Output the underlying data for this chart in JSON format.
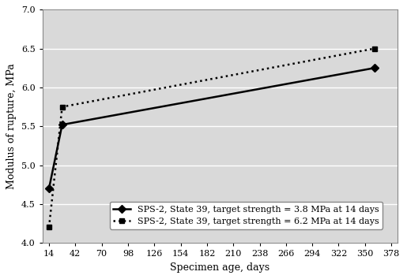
{
  "series1": {
    "x": [
      14,
      28,
      360
    ],
    "y": [
      4.7,
      5.52,
      6.25
    ],
    "label": "SPS-2, State 39, target strength = 3.8 MPa at 14 days",
    "color": "#000000",
    "linestyle": "-",
    "marker": "D",
    "linewidth": 1.8,
    "markersize": 5
  },
  "series2": {
    "x": [
      14,
      28,
      360
    ],
    "y": [
      4.2,
      5.75,
      6.5
    ],
    "label": "SPS-2, State 39, target strength = 6.2 MPa at 14 days",
    "color": "#000000",
    "linestyle": ":",
    "marker": "s",
    "linewidth": 1.8,
    "markersize": 5
  },
  "xlabel": "Specimen age, days",
  "ylabel": "Modulus of rupture, MPa",
  "xlim": [
    7,
    385
  ],
  "ylim": [
    4.0,
    7.0
  ],
  "xticks": [
    14,
    42,
    70,
    98,
    126,
    154,
    182,
    210,
    238,
    266,
    294,
    322,
    350,
    378
  ],
  "yticks": [
    4.0,
    4.5,
    5.0,
    5.5,
    6.0,
    6.5,
    7.0
  ],
  "plot_bg_color": "#d9d9d9",
  "fig_bg_color": "#ffffff",
  "grid_color": "#ffffff",
  "axis_fontsize": 9,
  "tick_fontsize": 8,
  "legend_fontsize": 8
}
